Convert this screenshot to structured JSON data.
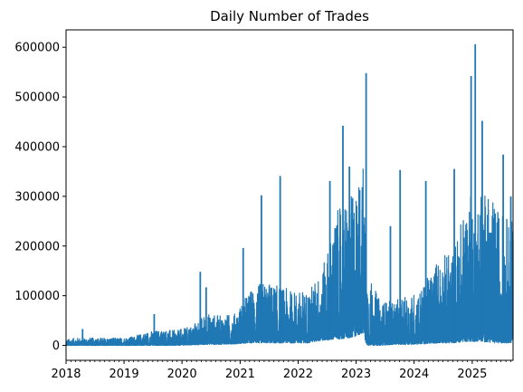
{
  "chart_data": {
    "type": "line",
    "title": "Daily Number of Trades",
    "xlabel": "",
    "ylabel": "",
    "xlim": [
      "2018-01-01",
      "2025-09-15"
    ],
    "ylim": [
      -30000,
      635000
    ],
    "x_ticks": [
      "2018",
      "2019",
      "2020",
      "2021",
      "2022",
      "2023",
      "2024",
      "2025"
    ],
    "y_ticks": [
      0,
      100000,
      200000,
      300000,
      400000,
      500000,
      600000
    ],
    "y_tick_labels": [
      "0",
      "100000",
      "200000",
      "300000",
      "400000",
      "500000",
      "600000"
    ],
    "grid": false,
    "legend": "none",
    "series": [
      {
        "color": "#1f77b4",
        "x": [
          "2018-01-01",
          "2018-03-01",
          "2018-06-01",
          "2018-09-01",
          "2018-12-01",
          "2019-03-01",
          "2019-06-01",
          "2019-09-01",
          "2019-12-01",
          "2020-03-01",
          "2020-06-01",
          "2020-09-01",
          "2020-12-01",
          "2021-03-01",
          "2021-06-01",
          "2021-09-01",
          "2021-12-01",
          "2022-03-01",
          "2022-06-01",
          "2022-09-01",
          "2022-12-01",
          "2023-02-15",
          "2023-03-10",
          "2023-06-01",
          "2023-09-01",
          "2023-12-01",
          "2024-03-01",
          "2024-06-01",
          "2024-09-01",
          "2024-12-01",
          "2025-03-01",
          "2025-06-01",
          "2025-09-15"
        ],
        "low": [
          0,
          0,
          0,
          0,
          0,
          0,
          0,
          0,
          0,
          1000,
          2000,
          2000,
          3000,
          5000,
          5000,
          5000,
          5000,
          5000,
          10000,
          12000,
          15000,
          25000,
          0,
          0,
          2000,
          2000,
          3000,
          5000,
          5000,
          8000,
          8000,
          5000,
          5000
        ],
        "high": [
          12000,
          15000,
          15000,
          15000,
          15000,
          18000,
          28000,
          32000,
          30000,
          40000,
          65000,
          60000,
          65000,
          110000,
          130000,
          120000,
          110000,
          110000,
          150000,
          270000,
          300000,
          370000,
          150000,
          90000,
          90000,
          100000,
          120000,
          180000,
          190000,
          300000,
          320000,
          280000,
          250000
        ],
        "peaks": [
          {
            "x": "2018-04-15",
            "y": 33000
          },
          {
            "x": "2019-07-10",
            "y": 63000
          },
          {
            "x": "2020-04-25",
            "y": 148000
          },
          {
            "x": "2020-06-01",
            "y": 117000
          },
          {
            "x": "2021-01-20",
            "y": 196000
          },
          {
            "x": "2021-05-15",
            "y": 302000
          },
          {
            "x": "2021-09-10",
            "y": 341000
          },
          {
            "x": "2022-07-20",
            "y": 331000
          },
          {
            "x": "2022-10-10",
            "y": 442000
          },
          {
            "x": "2022-11-20",
            "y": 360000
          },
          {
            "x": "2023-03-05",
            "y": 548000
          },
          {
            "x": "2023-08-05",
            "y": 240000
          },
          {
            "x": "2023-10-05",
            "y": 353000
          },
          {
            "x": "2024-03-15",
            "y": 331000
          },
          {
            "x": "2024-09-10",
            "y": 355000
          },
          {
            "x": "2024-12-25",
            "y": 542000
          },
          {
            "x": "2025-01-20",
            "y": 606000
          },
          {
            "x": "2025-03-05",
            "y": 452000
          },
          {
            "x": "2025-07-15",
            "y": 384000
          },
          {
            "x": "2025-09-01",
            "y": 300000
          }
        ]
      }
    ]
  }
}
